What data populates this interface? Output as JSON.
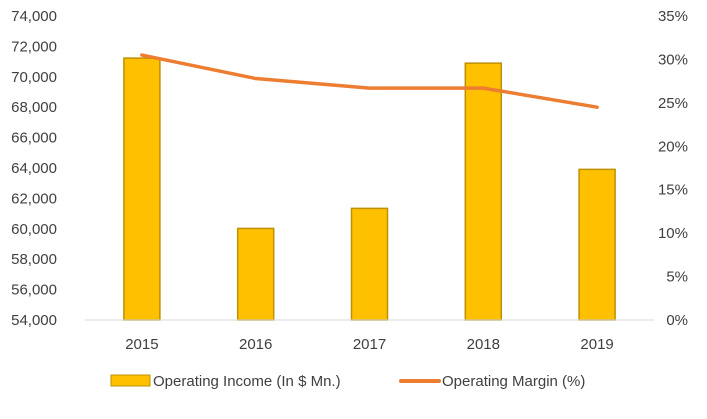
{
  "chart_data": {
    "type": "bar",
    "title": "",
    "xlabel": "",
    "categories": [
      "2015",
      "2016",
      "2017",
      "2018",
      "2019"
    ],
    "series": [
      {
        "name": "Operating Income (In $ Mn.)",
        "type": "bar",
        "axis": "left",
        "color": "#FFC000",
        "border_color": "#BF9000",
        "values": [
          71230,
          60024,
          61344,
          70898,
          63909
        ]
      },
      {
        "name": "Operating Margin (%)",
        "type": "line",
        "axis": "right",
        "color": "#ED7D31",
        "values": [
          30.5,
          27.8,
          26.7,
          26.7,
          24.5
        ]
      }
    ],
    "ylim_left": [
      54000,
      74000
    ],
    "yticks_left": [
      "54,000",
      "56,000",
      "58,000",
      "60,000",
      "62,000",
      "64,000",
      "66,000",
      "68,000",
      "70,000",
      "72,000",
      "74,000"
    ],
    "ylim_right": [
      0,
      35
    ],
    "yticks_right": [
      "0%",
      "5%",
      "10%",
      "15%",
      "20%",
      "25%",
      "30%",
      "35%"
    ],
    "grid": false,
    "legend_position": "bottom"
  }
}
